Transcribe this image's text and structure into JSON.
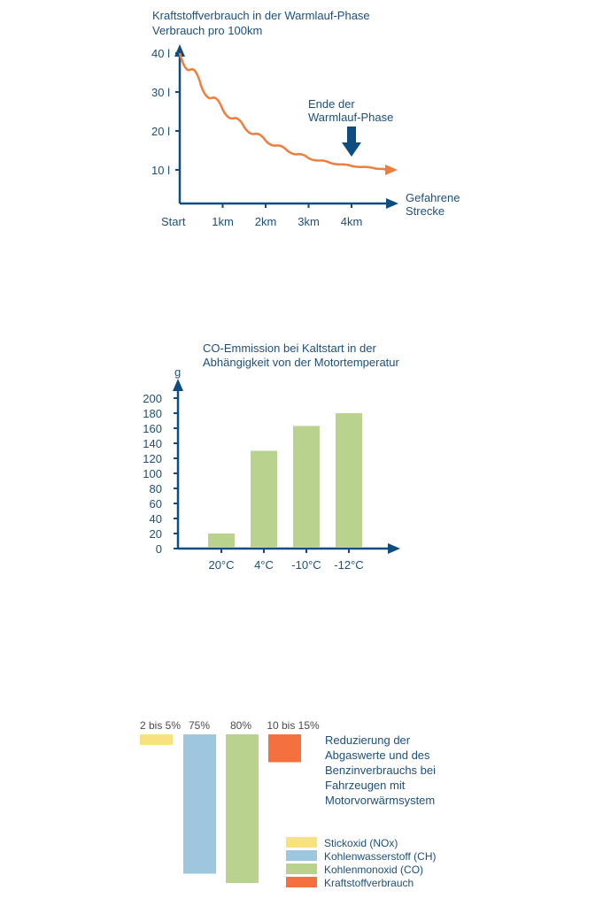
{
  "colors": {
    "axis": "#0f4d80",
    "text": "#1d4f7c",
    "curve": "#ef7d3d",
    "bar_green": "#b9d38f",
    "nox": "#f7e27f",
    "ch": "#9cc7df",
    "co": "#b9d38f",
    "fuel": "#f4703e"
  },
  "chart_data": [
    {
      "type": "line",
      "title": "Kraftstoffverbrauch in der Warmlauf-Phase",
      "subtitle": "Verbrauch pro 100km",
      "xlabel": "Gefahrene Strecke",
      "xlabel_lines": [
        "Gefahrene",
        "Strecke"
      ],
      "x_tick_labels": [
        "Start",
        "1km",
        "2km",
        "3km",
        "4km"
      ],
      "y_tick_labels": [
        "40 l",
        "30 l",
        "20 l",
        "10 l"
      ],
      "y_ticks": [
        40,
        30,
        20,
        10
      ],
      "ylim": [
        0,
        40
      ],
      "xlim": [
        0,
        5
      ],
      "x": [
        0,
        0.5,
        1,
        1.5,
        2,
        2.5,
        3,
        3.5,
        4,
        4.5,
        5
      ],
      "y": [
        40,
        31.5,
        25.5,
        21,
        17.5,
        15,
        13,
        11.8,
        11,
        10.5,
        10
      ],
      "annotation": "Ende der Warmlauf-Phase",
      "annotation_lines": [
        "Ende der",
        "Warmlauf-Phase"
      ],
      "annotation_x": 4
    },
    {
      "type": "bar",
      "title": "CO-Emmission bei Kaltstart in der Abhängigkeit von der Motortemperatur",
      "title_lines": [
        "CO-Emmission bei Kaltstart in der",
        "Abhängigkeit von der Motortemperatur"
      ],
      "ylabel": "g",
      "categories": [
        "20°C",
        "4°C",
        "-10°C",
        "-12°C"
      ],
      "values": [
        20,
        130,
        163,
        180
      ],
      "y_ticks": [
        0,
        20,
        40,
        60,
        80,
        100,
        120,
        140,
        160,
        180,
        200
      ],
      "ylim": [
        0,
        200
      ]
    },
    {
      "type": "bar",
      "title": "Reduzierung der Abgaswerte und des Benzinverbrauchs bei Fahrzeugen mit Motorvorwärmsystem",
      "title_lines": [
        "Reduzierung der",
        "Abgaswerte und des",
        "Benzinverbrauchs bei",
        "Fahrzeugen mit",
        "Motorvorwärmsystem"
      ],
      "categories": [
        "2 bis 5%",
        "75%",
        "80%",
        "10 bis 15%"
      ],
      "values": [
        5,
        75,
        80,
        15
      ],
      "series_names": [
        "Stickoxid (NOx)",
        "Kohlenwasserstoff (CH)",
        "Kohlenmonoxid (CO)",
        "Kraftstoffverbrauch"
      ],
      "legend_position": "bottom-right"
    }
  ]
}
